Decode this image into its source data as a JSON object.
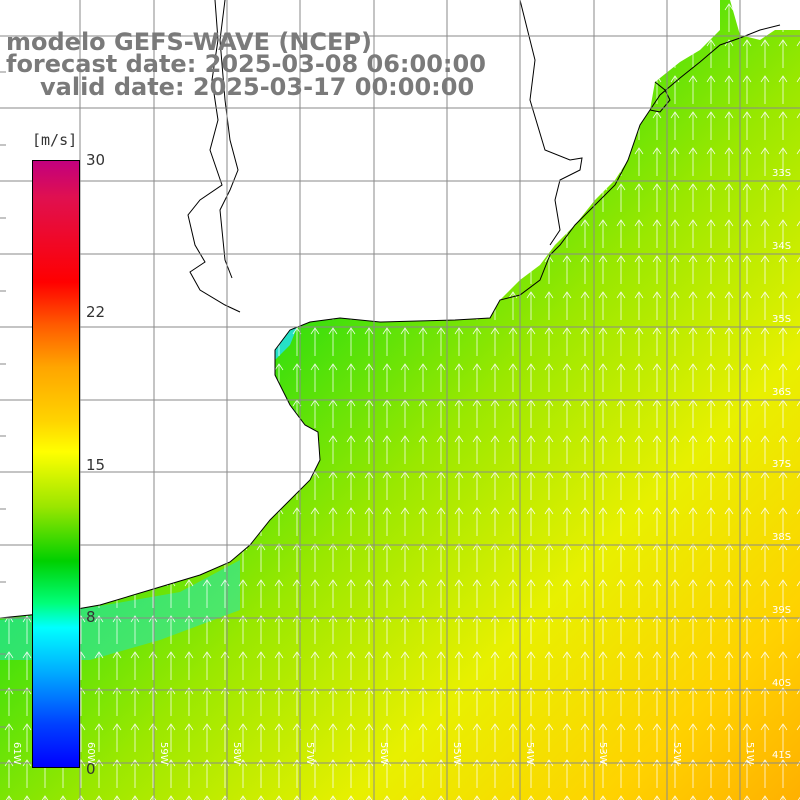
{
  "title": {
    "line1": "modelo GEFS-WAVE (NCEP)",
    "line2": "forecast date: 2025-03-08 06:00:00",
    "line3": "valid date: 2025-03-17 00:00:00"
  },
  "colorbar": {
    "unit": "[m/s]",
    "ticks": [
      "30",
      "22",
      "15",
      "8",
      "0"
    ],
    "range": [
      0,
      30
    ]
  },
  "grid": {
    "lat_labels": [
      "33S",
      "34S",
      "35S",
      "36S",
      "37S",
      "38S",
      "39S",
      "40S",
      "41S"
    ],
    "lon_labels": [
      "61W",
      "60W",
      "59W",
      "58W",
      "57W",
      "56W",
      "55W",
      "54W",
      "53W",
      "52W",
      "51W"
    ]
  },
  "field": {
    "variable": "wind speed",
    "arrow_direction": "northward"
  },
  "colors": {
    "land": "#ffffff",
    "coast": "#000000",
    "gridline": "#888888",
    "title": "#7a7a7a"
  }
}
